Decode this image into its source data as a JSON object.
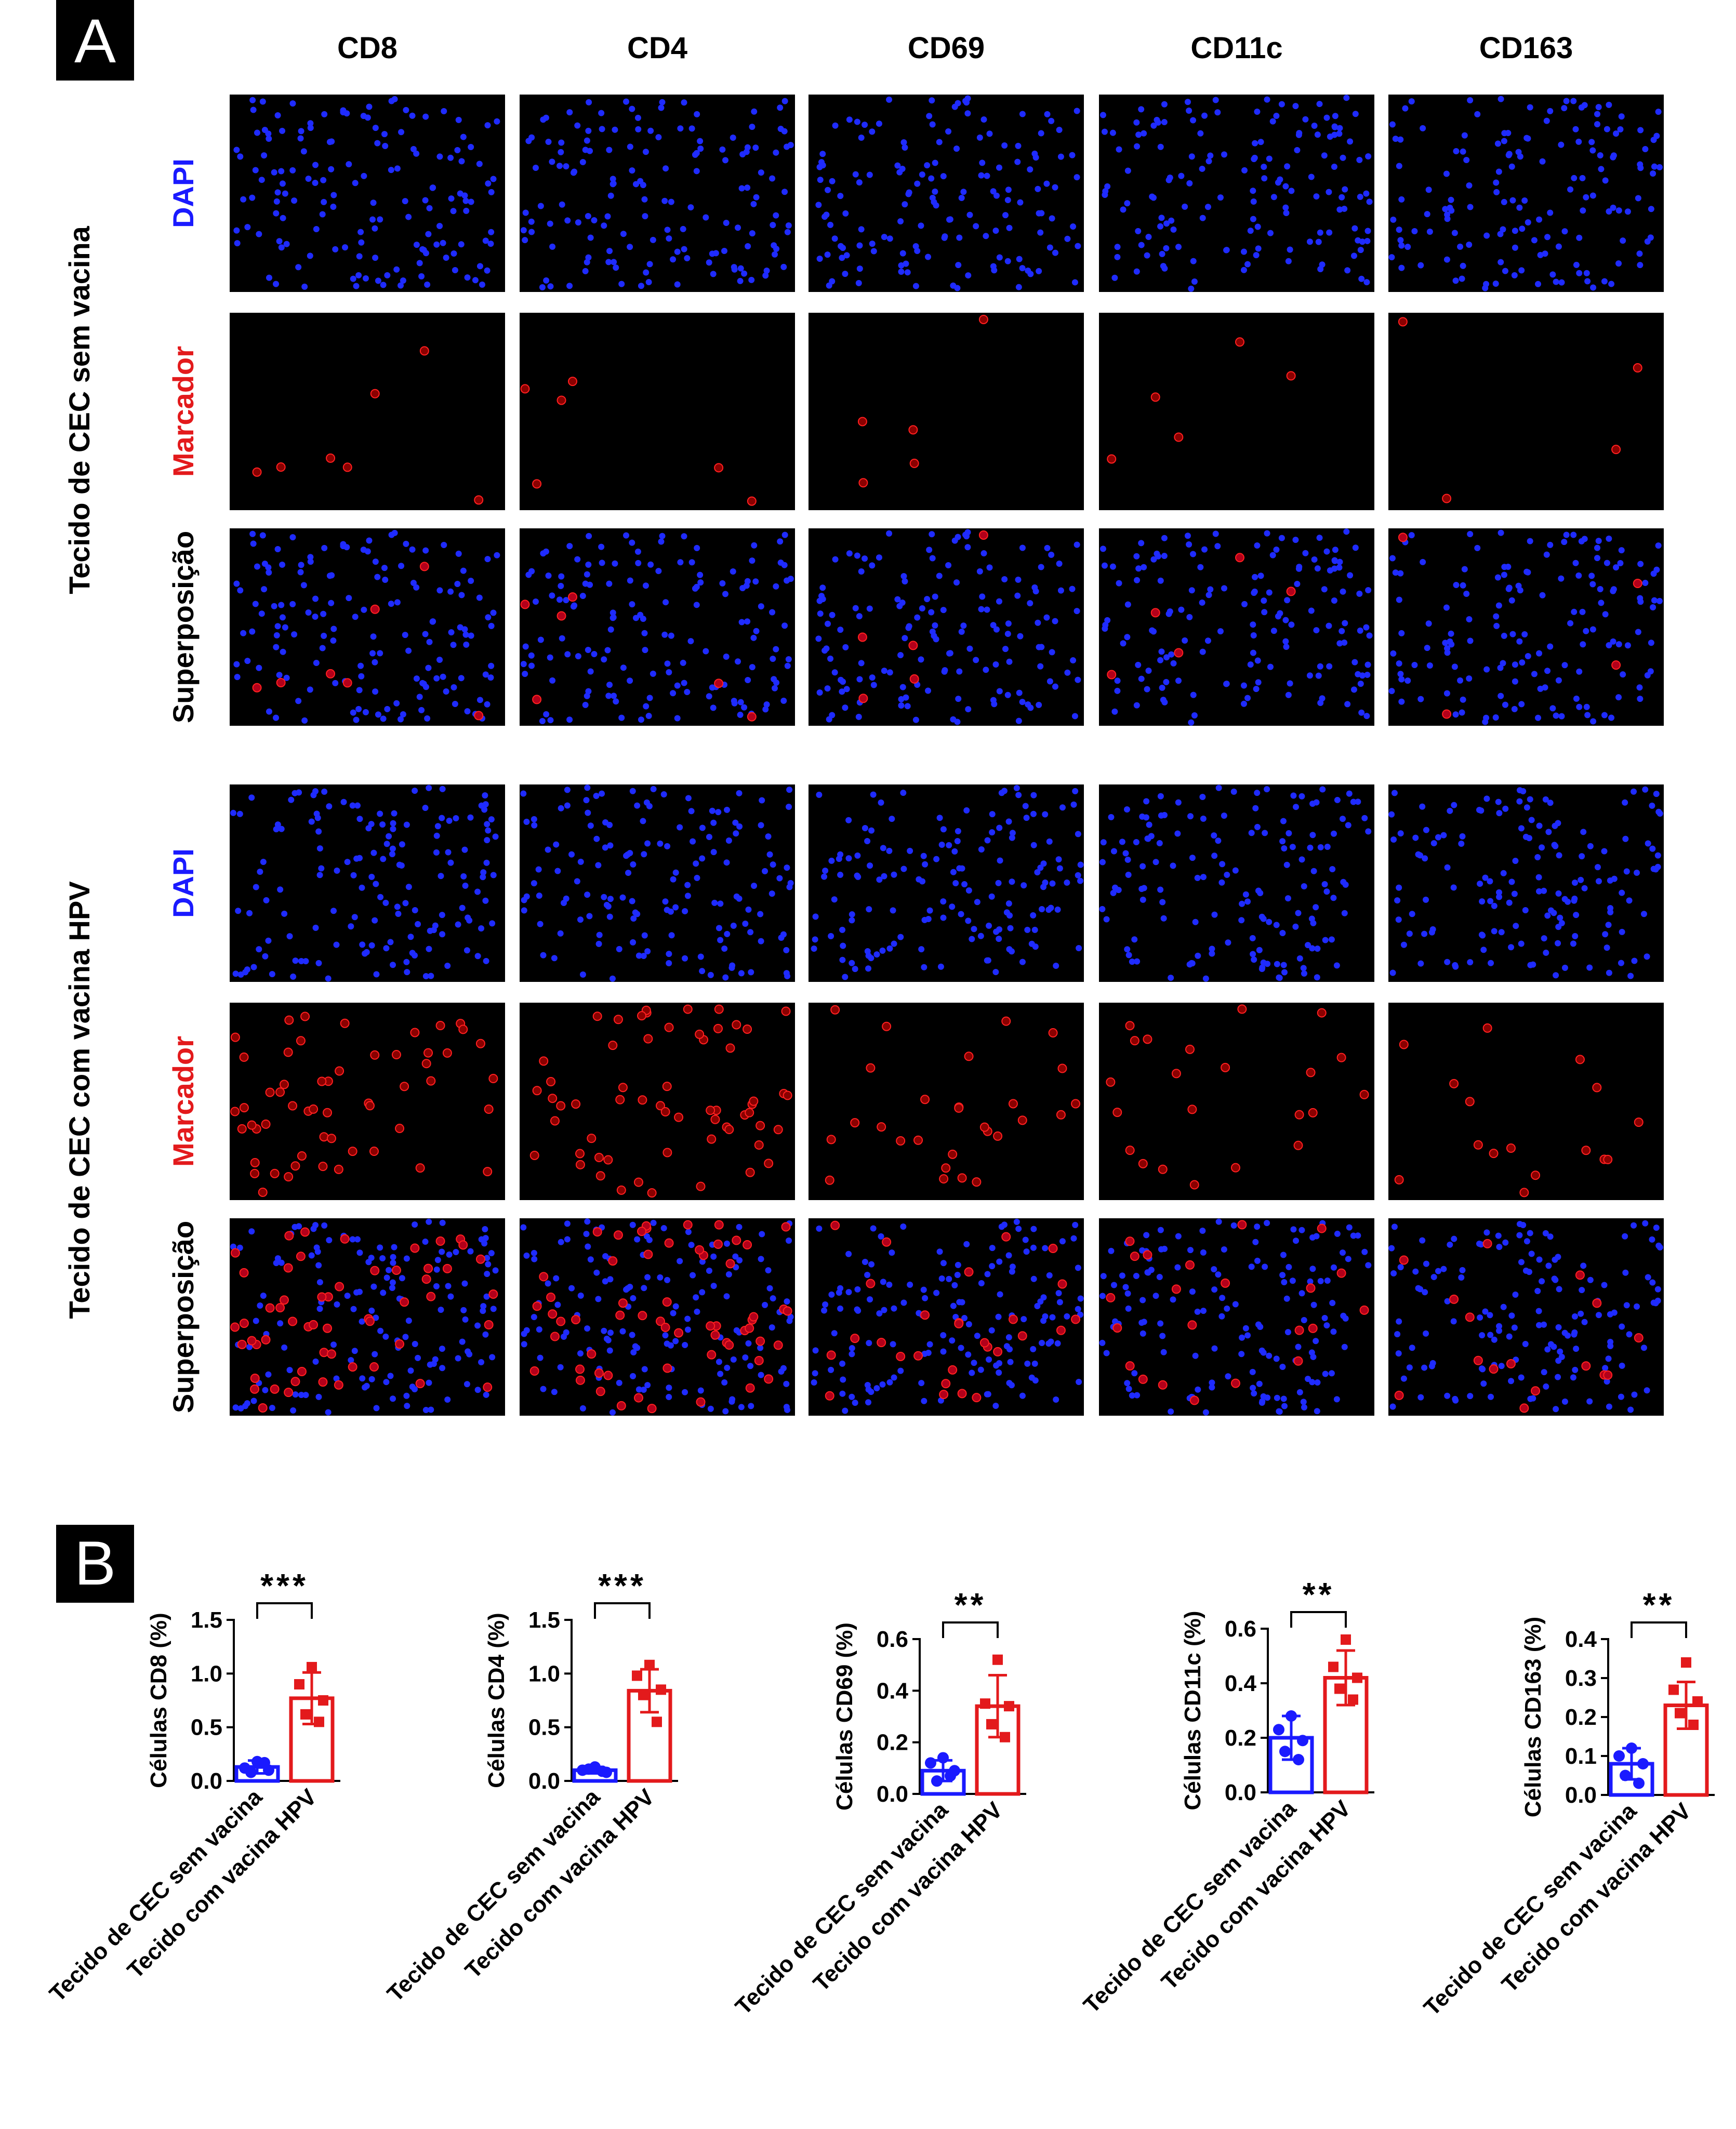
{
  "panels": {
    "a_label": "A",
    "b_label": "B"
  },
  "panel_a": {
    "columns": [
      "CD8",
      "CD4",
      "CD69",
      "CD11c",
      "CD163"
    ],
    "groups": [
      {
        "label": "Tecido de CEC sem vacina",
        "rows": [
          {
            "label": "DAPI",
            "color": "#1a1aff",
            "channel": "dapi"
          },
          {
            "label": "Marcador",
            "color": "#e31a1c",
            "channel": "marker"
          },
          {
            "label": "Superposição",
            "color": "#000000",
            "channel": "merge"
          }
        ]
      },
      {
        "label": "Tecido de CEC com vacina HPV",
        "rows": [
          {
            "label": "DAPI",
            "color": "#1a1aff",
            "channel": "dapi"
          },
          {
            "label": "Marcador",
            "color": "#e31a1c",
            "channel": "marker"
          },
          {
            "label": "Superposição",
            "color": "#000000",
            "channel": "merge"
          }
        ]
      }
    ]
  },
  "chart_data": [
    {
      "type": "bar",
      "ylabel": "Células CD8 (%)",
      "ylim": [
        0,
        1.5
      ],
      "yticks": [
        "0.0",
        "0.5",
        "1.0",
        "1.5"
      ],
      "significance": "***",
      "categories": [
        "Tecido de CEC sem vacina",
        "Tecido com vacina HPV"
      ],
      "means": [
        0.13,
        0.77
      ],
      "sd": [
        0.06,
        0.24
      ],
      "points": [
        [
          0.18,
          0.12,
          0.1,
          0.08,
          0.17
        ],
        [
          1.06,
          0.9,
          0.75,
          0.62,
          0.55
        ]
      ]
    },
    {
      "type": "bar",
      "ylabel": "Células CD4 (%)",
      "ylim": [
        0,
        1.5
      ],
      "yticks": [
        "0.0",
        "0.5",
        "1.0",
        "1.5"
      ],
      "significance": "***",
      "categories": [
        "Tecido de CEC sem vacina",
        "Tecido com vacina HPV"
      ],
      "means": [
        0.1,
        0.84
      ],
      "sd": [
        0.03,
        0.2
      ],
      "points": [
        [
          0.13,
          0.1,
          0.08,
          0.11,
          0.09
        ],
        [
          1.08,
          0.98,
          0.85,
          0.8,
          0.55
        ]
      ]
    },
    {
      "type": "bar",
      "ylabel": "Células CD69 (%)",
      "ylim": [
        0,
        0.6
      ],
      "yticks": [
        "0.0",
        "0.2",
        "0.4",
        "0.6"
      ],
      "significance": "**",
      "categories": [
        "Tecido de CEC sem vacina",
        "Tecido com vacina HPV"
      ],
      "means": [
        0.09,
        0.34
      ],
      "sd": [
        0.04,
        0.12
      ],
      "points": [
        [
          0.14,
          0.12,
          0.09,
          0.05,
          0.07
        ],
        [
          0.52,
          0.35,
          0.34,
          0.27,
          0.22
        ]
      ]
    },
    {
      "type": "bar",
      "ylabel": "Células CD11c (%)",
      "ylim": [
        0,
        0.6
      ],
      "yticks": [
        "0.0",
        "0.2",
        "0.4",
        "0.6"
      ],
      "significance": "**",
      "categories": [
        "Tecido de CEC sem vacina",
        "Tecido com vacina HPV"
      ],
      "means": [
        0.2,
        0.42
      ],
      "sd": [
        0.08,
        0.1
      ],
      "points": [
        [
          0.28,
          0.23,
          0.19,
          0.15,
          0.12
        ],
        [
          0.56,
          0.46,
          0.42,
          0.38,
          0.34
        ]
      ]
    },
    {
      "type": "bar",
      "ylabel": "Células CD163 (%)",
      "ylim": [
        0,
        0.4
      ],
      "yticks": [
        "0.0",
        "0.1",
        "0.2",
        "0.3",
        "0.4"
      ],
      "significance": "**",
      "categories": [
        "Tecido de CEC sem vacina",
        "Tecido com vacina HPV"
      ],
      "means": [
        0.08,
        0.23
      ],
      "sd": [
        0.04,
        0.06
      ],
      "points": [
        [
          0.12,
          0.1,
          0.08,
          0.05,
          0.03
        ],
        [
          0.34,
          0.27,
          0.24,
          0.21,
          0.18
        ]
      ]
    }
  ],
  "colors": {
    "control": "#1a1aff",
    "vaccine": "#e31a1c",
    "text": "#000000"
  }
}
